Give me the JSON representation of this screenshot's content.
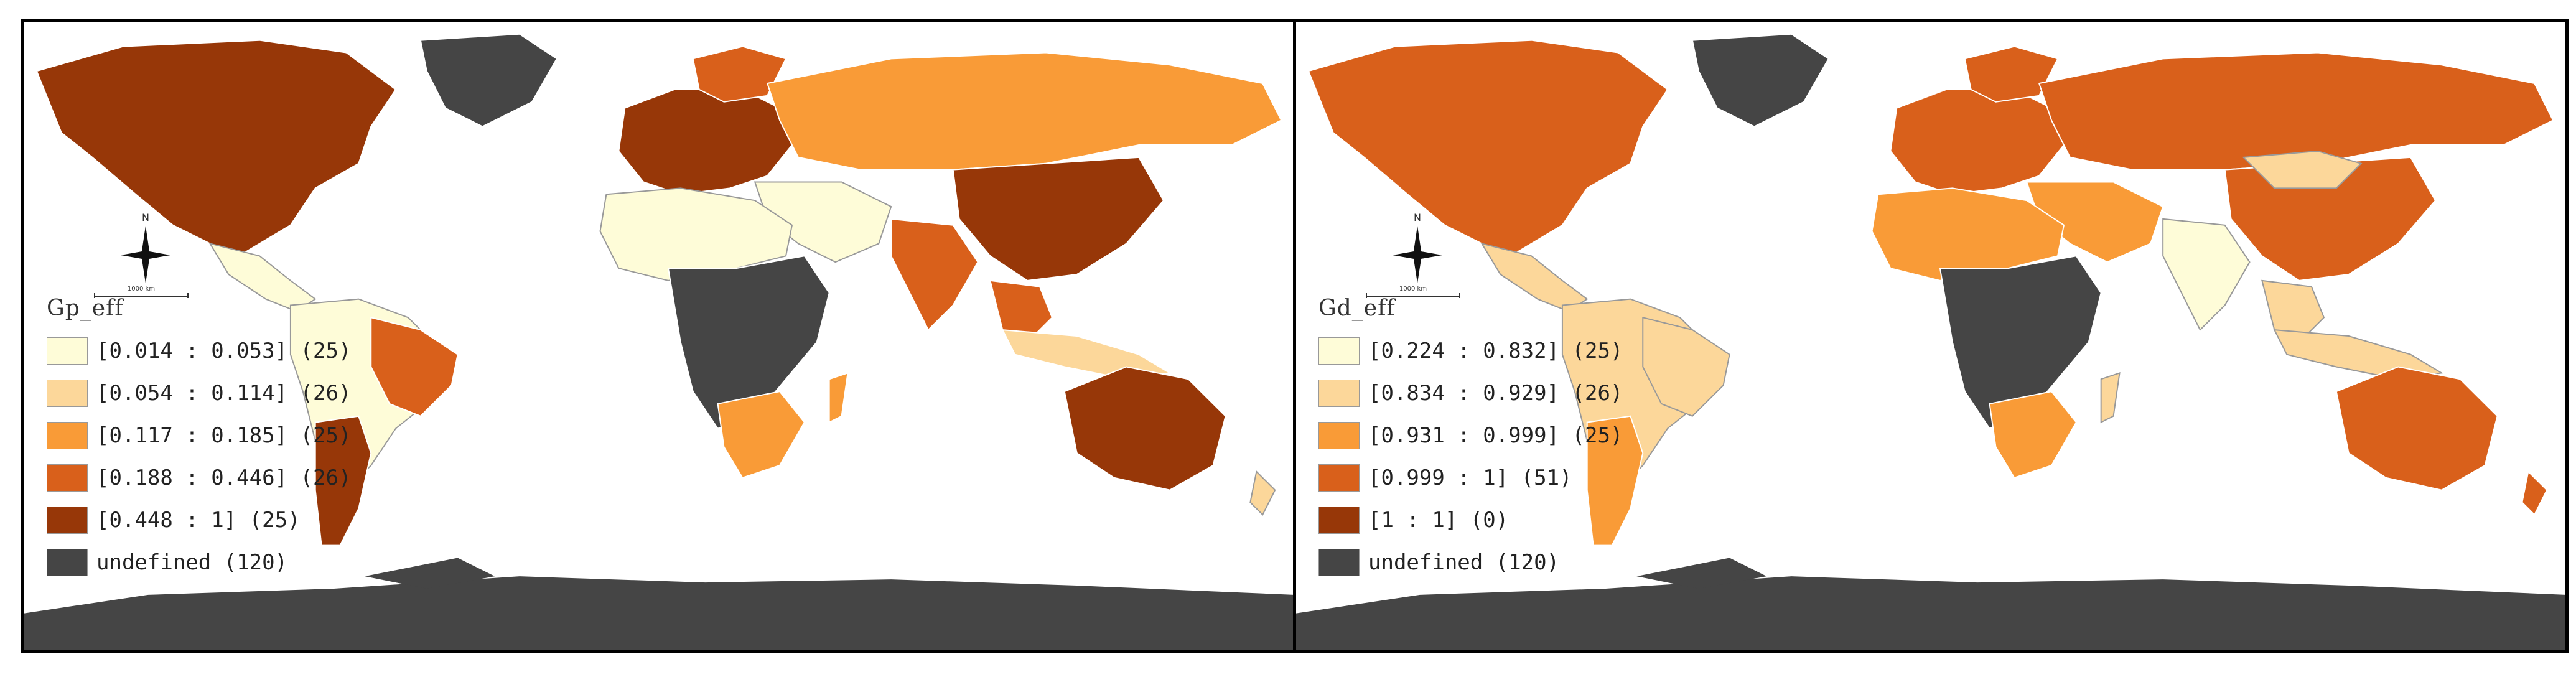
{
  "maps": [
    {
      "legend_title": "Gp_eff",
      "classes": [
        {
          "label": "[0.014 : 0.053] (25)",
          "color": "#fefcd8"
        },
        {
          "label": "[0.054 : 0.114] (26)",
          "color": "#fcd79a"
        },
        {
          "label": "[0.117 : 0.185] (25)",
          "color": "#f99b37"
        },
        {
          "label": "[0.188 : 0.446] (26)",
          "color": "#d9601b"
        },
        {
          "label": "[0.448 : 1] (25)",
          "color": "#973708"
        },
        {
          "label": "undefined (120)",
          "color": "#454545"
        }
      ],
      "scale_text": "1000 km",
      "north": "N"
    },
    {
      "legend_title": "Gd_eff",
      "classes": [
        {
          "label": "[0.224 : 0.832] (25)",
          "color": "#fefcd8"
        },
        {
          "label": "[0.834 : 0.929] (26)",
          "color": "#fcd79a"
        },
        {
          "label": "[0.931 : 0.999] (25)",
          "color": "#f99b37"
        },
        {
          "label": "[0.999 : 1] (51)",
          "color": "#d9601b"
        },
        {
          "label": "[1 : 1] (0)",
          "color": "#973708"
        },
        {
          "label": "undefined (120)",
          "color": "#454545"
        }
      ],
      "scale_text": "1000 km",
      "north": "N"
    }
  ]
}
